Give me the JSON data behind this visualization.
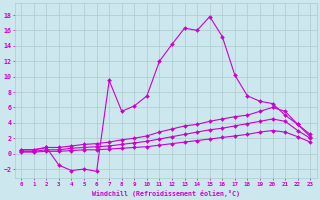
{
  "xlabel": "Windchill (Refroidissement éolien,°C)",
  "bg_color": "#cce8ee",
  "line_color": "#cc00cc",
  "grid_color": "#aacccc",
  "xlim": [
    -0.5,
    23.5
  ],
  "ylim": [
    -3.2,
    19.5
  ],
  "yticks": [
    -2,
    0,
    2,
    4,
    6,
    8,
    10,
    12,
    14,
    16,
    18
  ],
  "xticks": [
    0,
    1,
    2,
    3,
    4,
    5,
    6,
    7,
    8,
    9,
    10,
    11,
    12,
    13,
    14,
    15,
    16,
    17,
    18,
    19,
    20,
    21,
    22,
    23
  ],
  "line1_x": [
    0,
    1,
    2,
    3,
    4,
    5,
    6,
    7,
    8,
    9,
    10,
    11,
    12,
    13,
    14,
    15,
    16,
    17,
    18,
    19,
    20,
    21,
    22,
    23
  ],
  "line1_y": [
    0.5,
    0.5,
    0.8,
    -1.5,
    -2.2,
    -2.0,
    -2.3,
    9.5,
    5.5,
    6.2,
    7.5,
    12.0,
    14.2,
    16.3,
    16.0,
    17.8,
    15.2,
    10.2,
    7.5,
    6.8,
    6.5,
    5.0,
    3.8,
    2.2
  ],
  "line2_x": [
    0,
    1,
    2,
    3,
    4,
    5,
    6,
    7,
    8,
    9,
    10,
    11,
    12,
    13,
    14,
    15,
    16,
    17,
    18,
    19,
    20,
    21,
    22,
    23
  ],
  "line2_y": [
    0.5,
    0.5,
    0.8,
    0.8,
    1.0,
    1.2,
    1.3,
    1.5,
    1.8,
    2.0,
    2.3,
    2.8,
    3.2,
    3.6,
    3.8,
    4.2,
    4.5,
    4.8,
    5.0,
    5.5,
    6.0,
    5.5,
    3.8,
    2.5
  ],
  "line3_x": [
    0,
    1,
    2,
    3,
    4,
    5,
    6,
    7,
    8,
    9,
    10,
    11,
    12,
    13,
    14,
    15,
    16,
    17,
    18,
    19,
    20,
    21,
    22,
    23
  ],
  "line3_y": [
    0.3,
    0.3,
    0.5,
    0.5,
    0.7,
    0.8,
    0.9,
    1.0,
    1.2,
    1.4,
    1.6,
    1.9,
    2.2,
    2.5,
    2.8,
    3.1,
    3.3,
    3.6,
    3.9,
    4.2,
    4.5,
    4.2,
    3.0,
    2.0
  ],
  "line4_x": [
    0,
    1,
    2,
    3,
    4,
    5,
    6,
    7,
    8,
    9,
    10,
    11,
    12,
    13,
    14,
    15,
    16,
    17,
    18,
    19,
    20,
    21,
    22,
    23
  ],
  "line4_y": [
    0.2,
    0.2,
    0.3,
    0.3,
    0.4,
    0.5,
    0.5,
    0.6,
    0.7,
    0.8,
    0.9,
    1.1,
    1.3,
    1.5,
    1.7,
    1.9,
    2.1,
    2.3,
    2.5,
    2.8,
    3.0,
    2.8,
    2.2,
    1.5
  ]
}
